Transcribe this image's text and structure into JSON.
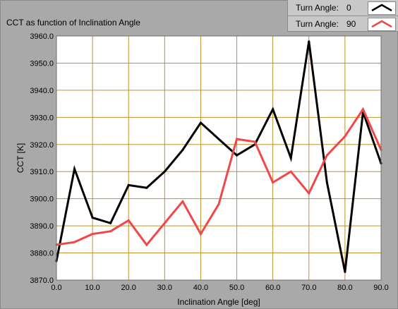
{
  "chart_data": {
    "type": "line",
    "title": "CCT as function of Inclination Angle",
    "xlabel": "Inclination Angle [deg]",
    "ylabel": "CCT [K]",
    "xlim": [
      0,
      90
    ],
    "ylim": [
      3870,
      3960
    ],
    "x_ticks": [
      "0.0",
      "10.0",
      "20.0",
      "30.0",
      "40.0",
      "50.0",
      "60.0",
      "70.0",
      "80.0",
      "90.0"
    ],
    "y_ticks": [
      "3870.0",
      "3880.0",
      "3890.0",
      "3900.0",
      "3910.0",
      "3920.0",
      "3930.0",
      "3940.0",
      "3950.0",
      "3960.0"
    ],
    "grid": true,
    "legend_position": "top-right",
    "x": [
      0,
      5,
      10,
      15,
      20,
      25,
      30,
      35,
      40,
      45,
      50,
      55,
      60,
      65,
      70,
      75,
      80,
      85,
      90
    ],
    "series": [
      {
        "legend_label": "Turn Angle:",
        "legend_value": "0",
        "color": "#000000",
        "values": [
          3877,
          3911,
          3893,
          3891,
          3905,
          3904,
          3910,
          3918,
          3928,
          3922,
          3916,
          3920,
          3933,
          3915,
          3958,
          3906,
          3873,
          3932,
          3913
        ]
      },
      {
        "legend_label": "Turn Angle:",
        "legend_value": "90",
        "color": "#f04848",
        "values": [
          3883,
          3884,
          3887,
          3888,
          3892,
          3883,
          3891,
          3899,
          3887,
          3898,
          3922,
          3921,
          3906,
          3910,
          3902,
          3916,
          3923,
          3933,
          3918
        ]
      }
    ]
  },
  "colors": {
    "panel_background": "#a9a9a9",
    "plot_background": "#ffffff",
    "grid": "#c0902a"
  }
}
